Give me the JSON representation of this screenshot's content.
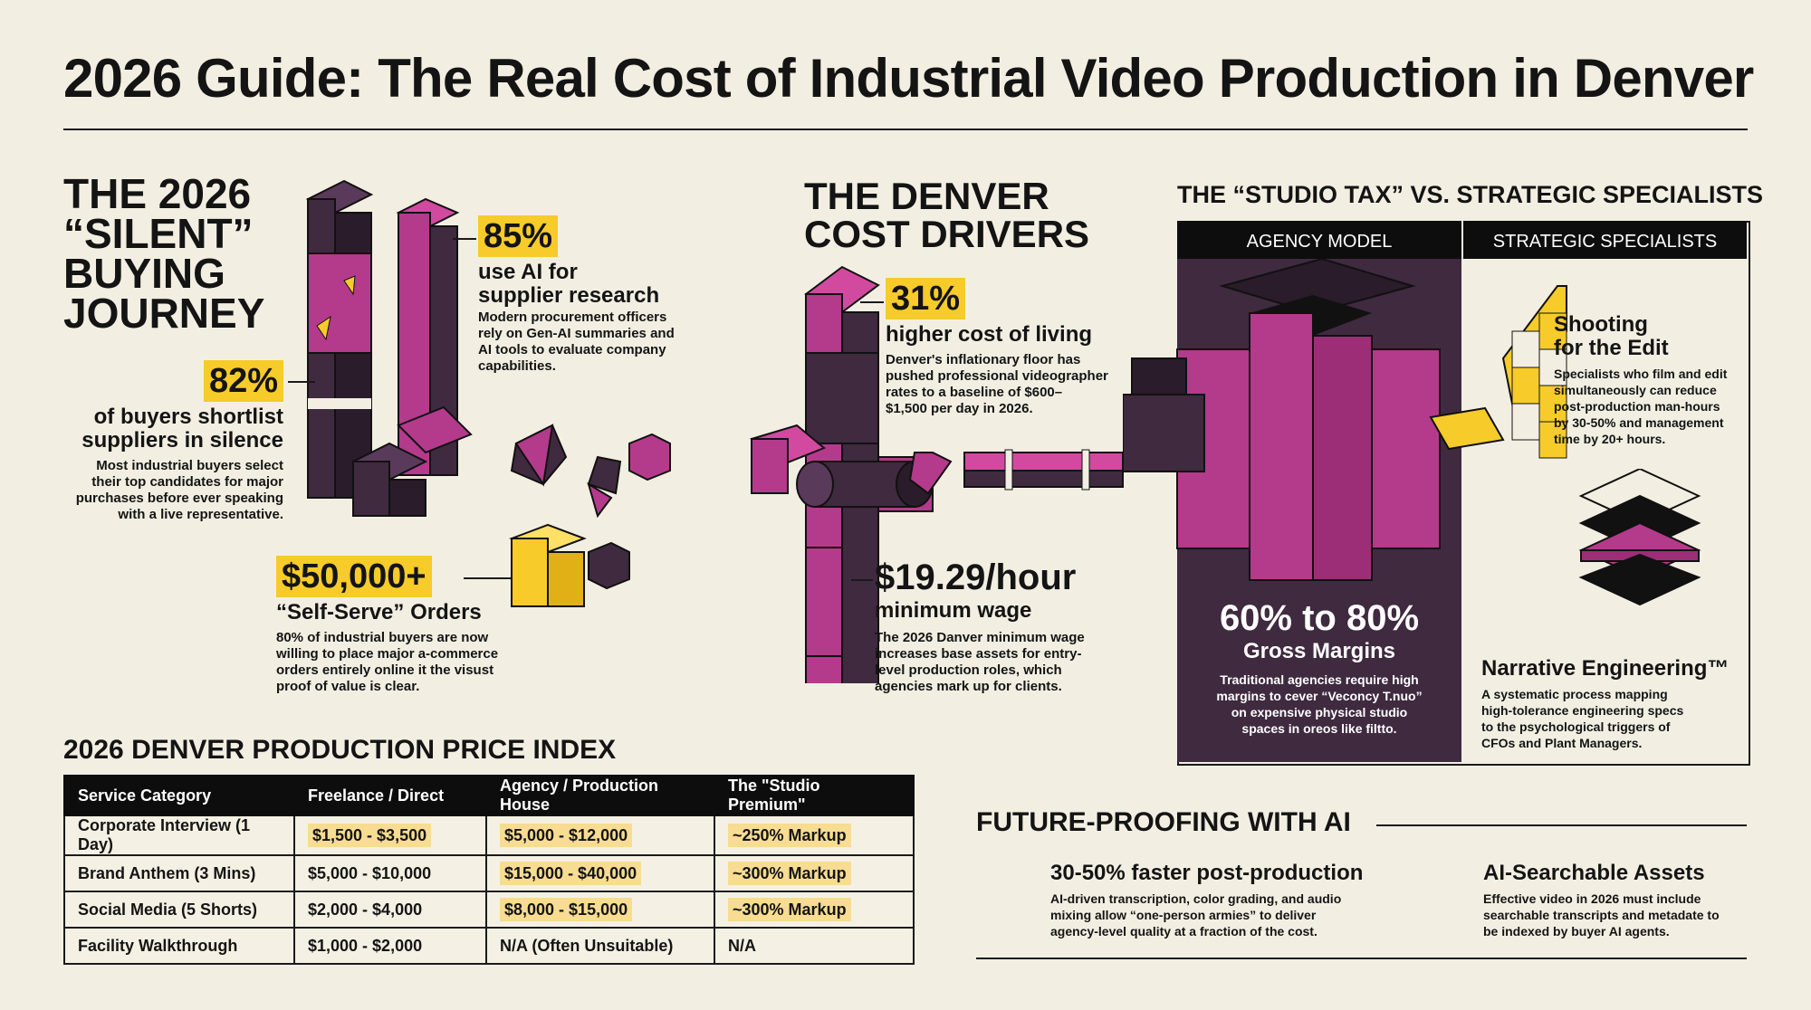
{
  "header": {
    "title": "2026 Guide: The Real Cost of Industrial Video Production in Denver"
  },
  "left": {
    "heading": [
      "THE 2026",
      "“SILENT”",
      "BUYING",
      "JOURNEY"
    ],
    "stat_85": {
      "value": "85%",
      "sub1": "use AI for",
      "sub2": "supplier research",
      "body": [
        "Modern procurement officers",
        "rely on Gen-AI summaries and",
        "AI tools to evaluate company",
        "capabilities."
      ]
    },
    "stat_82": {
      "value": "82%",
      "sub1": "of buyers shortlist",
      "sub2": "suppliers in silence",
      "body": [
        "Most industrial buyers select",
        "their top candidates for major",
        "purchases before ever speaking",
        "with a live representative."
      ]
    },
    "stat_50k": {
      "value": "$50,000+",
      "sub": "“Self-Serve” Orders",
      "body": [
        "80% of industrial buyers are now",
        "willing to place major a-commerce",
        "orders entirely online it the visust",
        "proof of value is clear."
      ]
    }
  },
  "middle": {
    "heading": [
      "THE DENVER",
      "COST DRIVERS"
    ],
    "stat_31": {
      "value": "31%",
      "sub": "higher cost of living",
      "body": [
        "Denver's inflationary floor has",
        "pushed professional videographer",
        "rates to a baseline of $600–",
        "$1,500 per day in 2026."
      ]
    },
    "wage": {
      "value": "$19.29/hour",
      "sub": "minimum wage",
      "body": [
        "The 2026 Danver minimum wage",
        "increases base assets for entry-",
        "level production roles, which",
        "agencies mark up for clients."
      ]
    }
  },
  "comparison": {
    "heading": "THE “STUDIO TAX” VS. STRATEGIC SPECIALISTS",
    "col1": "AGENCY MODEL",
    "col2": "STRATEGIC SPECIALISTS",
    "margin": {
      "value": "60% to 80%",
      "sub": "Gross Margins",
      "body": [
        "Traditional agencies require high",
        "margins to cever “Veconcy T.nuo”",
        "on expensive physical studio",
        "spaces in oreos like filtto."
      ]
    },
    "edit": {
      "title1": "Shooting",
      "title2": "for the Edit",
      "body": [
        "Specialists who film and edit",
        "simultaneously can reduce",
        "post-production man-hours",
        "by 30-50% and management",
        "time by 20+ hours."
      ]
    },
    "narrative": {
      "title": "Narrative Engineering™",
      "body": [
        "A systematic process mapping",
        "high-tolerance engineering specs",
        "to the psychological triggers of",
        "CFOs and Plant Managers."
      ]
    }
  },
  "price_index": {
    "heading": "2026 DENVER PRODUCTION PRICE INDEX",
    "columns": [
      "Service Category",
      "Freelance / Direct",
      "Agency / Production House",
      "The \"Studio Premium\""
    ],
    "rows": [
      [
        "Corporate Interview (1 Day)",
        "$1,500 - $3,500",
        "$5,000 - $12,000",
        "~250% Markup"
      ],
      [
        "Brand Anthem (3 Mins)",
        "$5,000 - $10,000",
        "$15,000 - $40,000",
        "~300% Markup"
      ],
      [
        "Social Media (5 Shorts)",
        "$2,000 - $4,000",
        "$8,000 - $15,000",
        "~300% Markup"
      ],
      [
        "Facility Walkthrough",
        "$1,000 - $2,000",
        "N/A (Often Unsuitable)",
        "N/A"
      ]
    ]
  },
  "future": {
    "heading": "FUTURE-PROOFING WITH AI",
    "item1": {
      "title": "30-50% faster post-production",
      "body": [
        "AI-driven transcription, color grading, and audio",
        "mixing allow “one-person armies” to deliver",
        "agency-level quality at a fraction of the cost."
      ]
    },
    "item2": {
      "title": "AI-Searchable Assets",
      "body": [
        "Effective video in 2026 must include",
        "searchable transcripts and metadate to",
        "be indexed by buyer AI agents."
      ]
    }
  },
  "colors": {
    "background": "#f2efe2",
    "magenta": "#b43a8c",
    "plum": "#3f2a3f",
    "yellow": "#f6cb2a",
    "black": "#0d0d0d"
  }
}
